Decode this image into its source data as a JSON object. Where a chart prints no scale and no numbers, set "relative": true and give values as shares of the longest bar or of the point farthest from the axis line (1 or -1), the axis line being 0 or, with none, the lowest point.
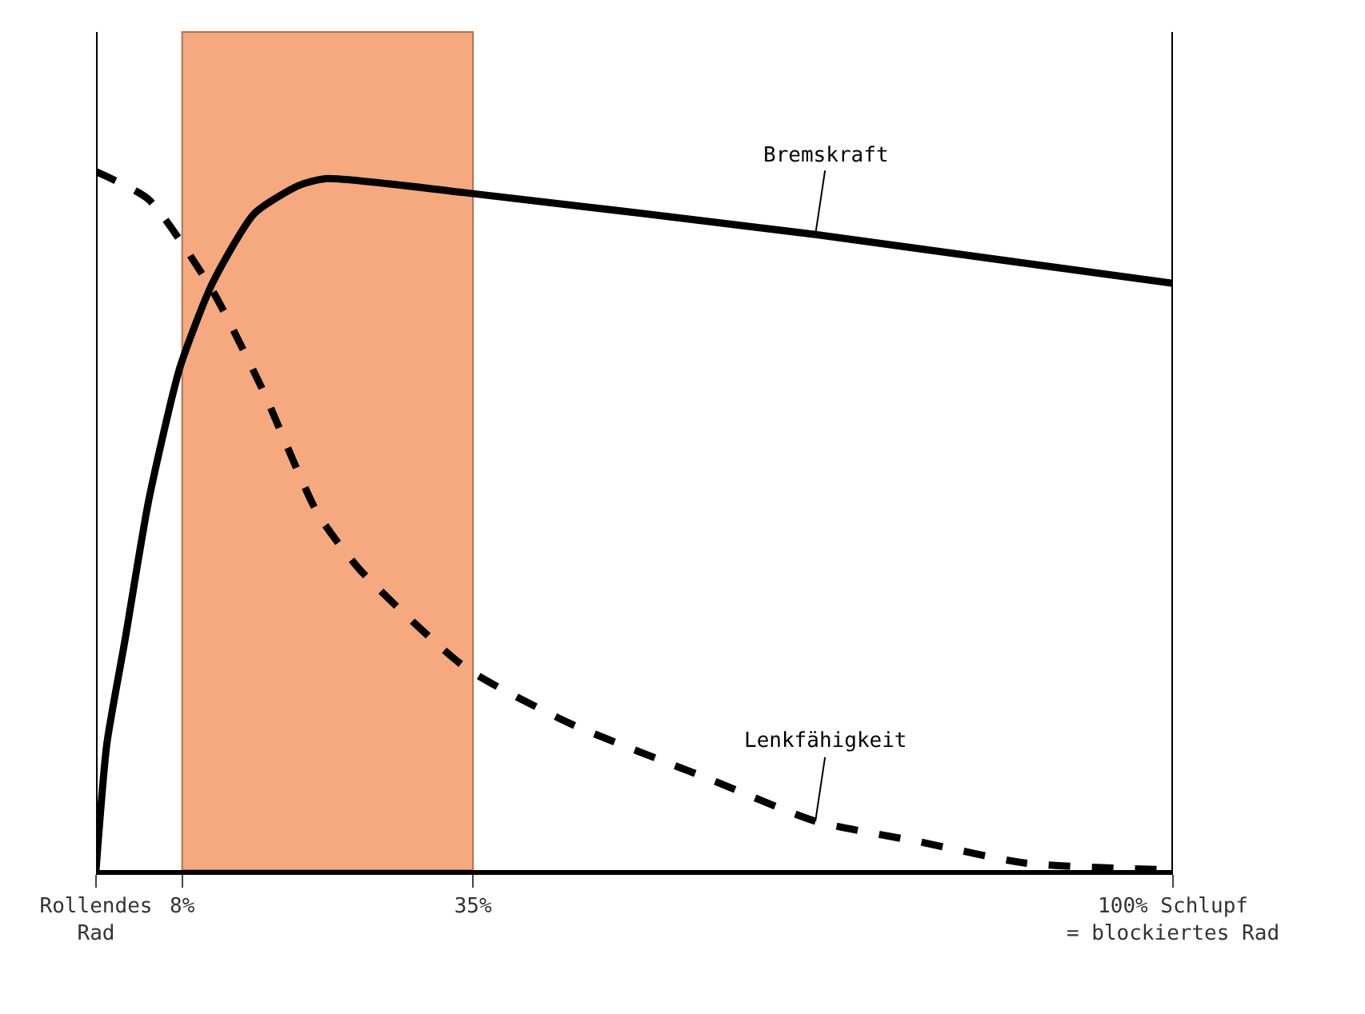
{
  "chart_data": {
    "type": "line",
    "relative": true,
    "xlim": [
      0,
      100
    ],
    "xticks": [
      {
        "value": 0,
        "label": "Rollendes\nRad"
      },
      {
        "value": 8,
        "label": "8%"
      },
      {
        "value": 35,
        "label": "35%"
      },
      {
        "value": 100,
        "label": "100% Schlupf\n= blockiertes Rad"
      }
    ],
    "series": [
      {
        "name": "Bremskraft",
        "color": "#000000",
        "line_style": "solid",
        "x": [
          0,
          1.0,
          2.7,
          4.9,
          7.8,
          10.8,
          14.7,
          18.8,
          21.3,
          34.2,
          66.8,
          100
        ],
        "values": [
          0,
          0.18,
          0.33,
          0.53,
          0.72,
          0.84,
          0.94,
          0.98,
          0.99,
          0.97,
          0.91,
          0.84
        ]
      },
      {
        "name": "Lenkfähigkeit",
        "color": "#000000",
        "line_style": "dashed",
        "x": [
          0,
          4.9,
          10.8,
          15.4,
          20.6,
          24.5,
          34.3,
          44,
          57,
          66.8,
          76.6,
          86.3,
          100
        ],
        "values": [
          1,
          0.96,
          0.83,
          0.69,
          0.51,
          0.43,
          0.29,
          0.21,
          0.13,
          0.07,
          0.04,
          0.01,
          0
        ]
      }
    ],
    "bands": [
      {
        "axis": "x",
        "from": 8,
        "to": 35,
        "color": "#f6a97e"
      }
    ],
    "ref_lines": [
      {
        "axis": "x",
        "value": 0,
        "color": "#000000"
      },
      {
        "axis": "x",
        "value": 100,
        "color": "#000000"
      }
    ],
    "grid": false,
    "legend": false,
    "marker": "none"
  }
}
